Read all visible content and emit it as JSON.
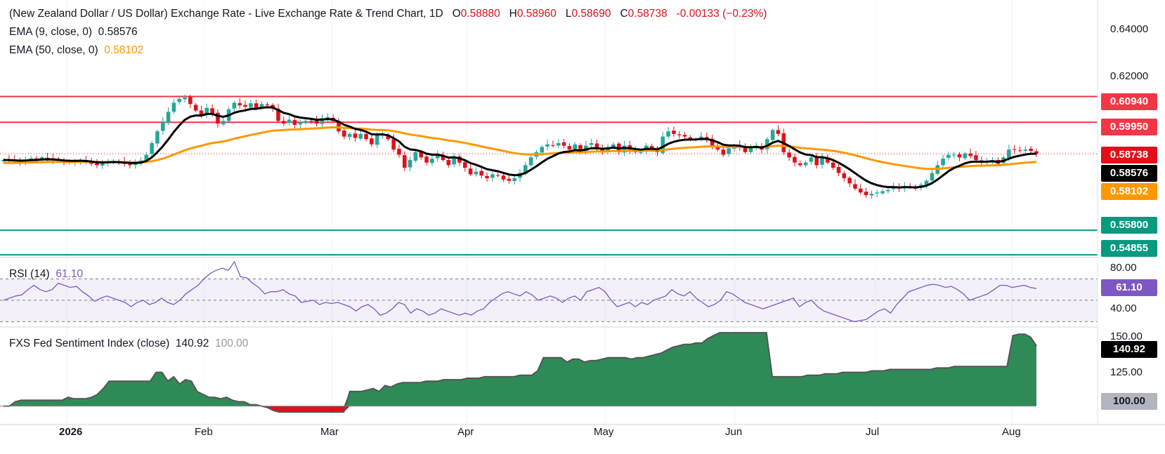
{
  "header": {
    "title": "(New Zealand Dollar / US Dollar) Exchange Rate - Live Exchange Rate & Trend Chart, 1D",
    "o_label": "O",
    "o_val": "0.58880",
    "h_label": "H",
    "h_val": "0.58960",
    "l_label": "L",
    "l_val": "0.58690",
    "c_label": "C",
    "c_val": "0.58738",
    "change": "-0.00133 (−0.23%)",
    "ema9_label": "EMA (9, close, 0)",
    "ema9_val": "0.58576",
    "ema50_label": "EMA (50, close, 0)",
    "ema50_val": "0.58102"
  },
  "price_axis": [
    "0.64000",
    "0.62000"
  ],
  "price_tags": {
    "r1": "0.60940",
    "r2": "0.59950",
    "last": "0.58738",
    "ema9": "0.58576",
    "ema50": "0.58102",
    "s1": "0.55800",
    "s2": "0.54855"
  },
  "rsi": {
    "label": "RSI (14)",
    "value": "61.10",
    "axis": [
      "80.00",
      "40.00"
    ],
    "tag": "61.10"
  },
  "fsi": {
    "label": "FXS Fed Sentiment Index (close)",
    "value": "140.92",
    "baseline": "100.00",
    "axis": [
      "150.00",
      "125.00"
    ],
    "tag": "140.92",
    "base_tag": "100.00"
  },
  "x_axis": [
    "2026",
    "Feb",
    "Mar",
    "Apr",
    "May",
    "Jun",
    "Jul",
    "Aug"
  ],
  "colors": {
    "up": "#26a69a",
    "down": "#e0101a",
    "ema9": "#000000",
    "ema50": "#ff9800",
    "resistance": "#f23645",
    "support": "#089981",
    "rsi": "#7e57c2",
    "fsi": "#2e8b57"
  },
  "chart_data": [
    {
      "type": "candlestick",
      "title": "(New Zealand Dollar / US Dollar) Exchange Rate - Live Exchange Rate & Trend Chart, 1D",
      "x": [
        "2026",
        "Feb",
        "Mar",
        "Apr",
        "May",
        "Jun",
        "Jul",
        "Aug"
      ],
      "ylim": [
        0.5475,
        0.6465
      ],
      "closes": [
        0.585,
        0.5848,
        0.5845,
        0.5842,
        0.585,
        0.5856,
        0.5852,
        0.586,
        0.5855,
        0.585,
        0.5845,
        0.5838,
        0.5842,
        0.5845,
        0.585,
        0.5842,
        0.5835,
        0.583,
        0.5838,
        0.5843,
        0.5846,
        0.584,
        0.5835,
        0.583,
        0.5838,
        0.5848,
        0.587,
        0.5915,
        0.596,
        0.5995,
        0.6035,
        0.607,
        0.6085,
        0.609,
        0.6065,
        0.604,
        0.602,
        0.605,
        0.603,
        0.599,
        0.6,
        0.6045,
        0.607,
        0.606,
        0.6055,
        0.6068,
        0.605,
        0.6065,
        0.606,
        0.605,
        0.6,
        0.599,
        0.6005,
        0.5985,
        0.5995,
        0.6,
        0.5998,
        0.599,
        0.601,
        0.6015,
        0.6,
        0.596,
        0.594,
        0.595,
        0.5935,
        0.595,
        0.593,
        0.591,
        0.5945,
        0.595,
        0.593,
        0.589,
        0.587,
        0.582,
        0.585,
        0.588,
        0.586,
        0.584,
        0.5855,
        0.587,
        0.585,
        0.583,
        0.5865,
        0.584,
        0.582,
        0.5795,
        0.5805,
        0.579,
        0.578,
        0.5795,
        0.579,
        0.5775,
        0.577,
        0.578,
        0.58,
        0.583,
        0.586,
        0.588,
        0.59,
        0.591,
        0.5905,
        0.5915,
        0.5905,
        0.589,
        0.591,
        0.588,
        0.5905,
        0.5915,
        0.5895,
        0.5885,
        0.59,
        0.591,
        0.588,
        0.5905,
        0.589,
        0.588,
        0.588,
        0.5905,
        0.5895,
        0.588,
        0.594,
        0.596,
        0.595,
        0.5945,
        0.594,
        0.593,
        0.593,
        0.594,
        0.593,
        0.5905,
        0.589,
        0.587,
        0.5895,
        0.5905,
        0.59,
        0.588,
        0.5895,
        0.5905,
        0.589,
        0.593,
        0.5965,
        0.595,
        0.588,
        0.586,
        0.584,
        0.583,
        0.584,
        0.586,
        0.583,
        0.586,
        0.584,
        0.582,
        0.58,
        0.578,
        0.576,
        0.574,
        0.5725,
        0.5715,
        0.572,
        0.5725,
        0.573,
        0.5735,
        0.5745,
        0.574,
        0.575,
        0.5745,
        0.574,
        0.5755,
        0.577,
        0.58,
        0.583,
        0.5855,
        0.587,
        0.587,
        0.586,
        0.5875,
        0.5865,
        0.585,
        0.584,
        0.5845,
        0.585,
        0.5835,
        0.586,
        0.589,
        0.589,
        0.5885,
        0.589,
        0.5885,
        0.5874
      ],
      "series": [
        {
          "name": "EMA (9, close, 0)",
          "last": 0.58576
        },
        {
          "name": "EMA (50, close, 0)",
          "last": 0.58102
        }
      ],
      "levels": [
        0.6094,
        0.5995,
        0.558,
        0.54855
      ],
      "last": 0.58738
    },
    {
      "type": "line",
      "title": "RSI (14)",
      "ylim": [
        25,
        90
      ],
      "levels": [
        70,
        50,
        30
      ],
      "values": [
        50,
        52,
        54,
        55,
        60,
        64,
        60,
        58,
        60,
        66,
        64,
        62,
        63,
        58,
        54,
        49,
        52,
        54,
        52,
        50,
        48,
        44,
        48,
        50,
        46,
        48,
        52,
        48,
        46,
        50,
        56,
        60,
        64,
        70,
        75,
        78,
        80,
        78,
        86,
        72,
        71,
        66,
        62,
        56,
        58,
        58,
        60,
        56,
        54,
        48,
        49,
        50,
        46,
        48,
        47,
        48,
        46,
        44,
        40,
        44,
        46,
        42,
        36,
        38,
        42,
        48,
        46,
        38,
        42,
        40,
        36,
        38,
        42,
        40,
        38,
        36,
        38,
        36,
        40,
        42,
        48,
        52,
        56,
        58,
        56,
        54,
        58,
        55,
        50,
        52,
        54,
        52,
        48,
        52,
        54,
        50,
        58,
        60,
        62,
        58,
        50,
        44,
        46,
        48,
        44,
        48,
        46,
        50,
        52,
        54,
        60,
        56,
        54,
        58,
        52,
        48,
        44,
        46,
        50,
        58,
        56,
        52,
        48,
        46,
        44,
        42,
        44,
        46,
        48,
        50,
        52,
        44,
        48,
        50,
        44,
        40,
        38,
        36,
        34,
        32,
        30,
        31,
        32,
        36,
        40,
        42,
        38,
        46,
        52,
        58,
        60,
        62,
        64,
        65,
        64,
        62,
        63,
        60,
        56,
        50,
        52,
        54,
        56,
        60,
        64,
        64,
        62,
        63,
        64,
        62,
        61
      ],
      "last": 61.1
    },
    {
      "type": "area",
      "title": "FXS Fed Sentiment Index (close)",
      "ylim": [
        98,
        151
      ],
      "baseline": 100,
      "values": [
        100,
        100,
        103,
        104,
        104,
        104,
        104,
        104,
        104,
        104,
        104,
        106,
        105,
        105,
        105,
        106,
        108,
        112,
        117,
        117,
        117,
        117,
        117,
        117,
        117,
        117,
        123,
        123,
        117,
        120,
        115,
        118,
        117,
        110,
        108,
        106,
        106,
        105,
        106,
        104,
        103,
        103,
        101,
        101,
        100,
        99,
        97,
        96,
        96,
        96,
        96,
        96,
        96,
        96,
        96,
        96,
        96,
        96,
        96,
        110,
        110,
        110,
        111,
        112,
        110,
        114,
        113,
        115,
        116,
        116,
        116,
        116,
        117,
        117,
        117,
        118,
        118,
        118,
        118,
        119,
        119,
        119,
        120,
        120,
        120,
        120,
        120,
        120,
        121,
        121,
        121,
        124,
        133,
        133,
        133,
        133,
        130,
        132,
        132,
        130,
        131,
        131,
        132,
        133,
        133,
        133,
        133,
        132,
        133,
        133,
        134,
        135,
        136,
        138,
        140,
        141,
        142,
        142,
        143,
        143,
        146,
        148,
        150,
        150,
        150,
        150,
        150,
        150,
        150,
        150,
        150,
        120,
        120,
        120,
        120,
        120,
        120,
        121,
        121,
        121,
        122,
        122,
        122,
        123,
        123,
        123,
        123,
        123,
        124,
        124,
        124,
        125,
        125,
        125,
        125,
        125,
        125,
        125,
        125,
        126,
        126,
        126,
        127,
        127,
        127,
        127,
        127,
        127,
        127,
        127,
        127,
        127,
        148,
        149,
        149,
        147,
        141
      ],
      "last": 140.92
    }
  ]
}
